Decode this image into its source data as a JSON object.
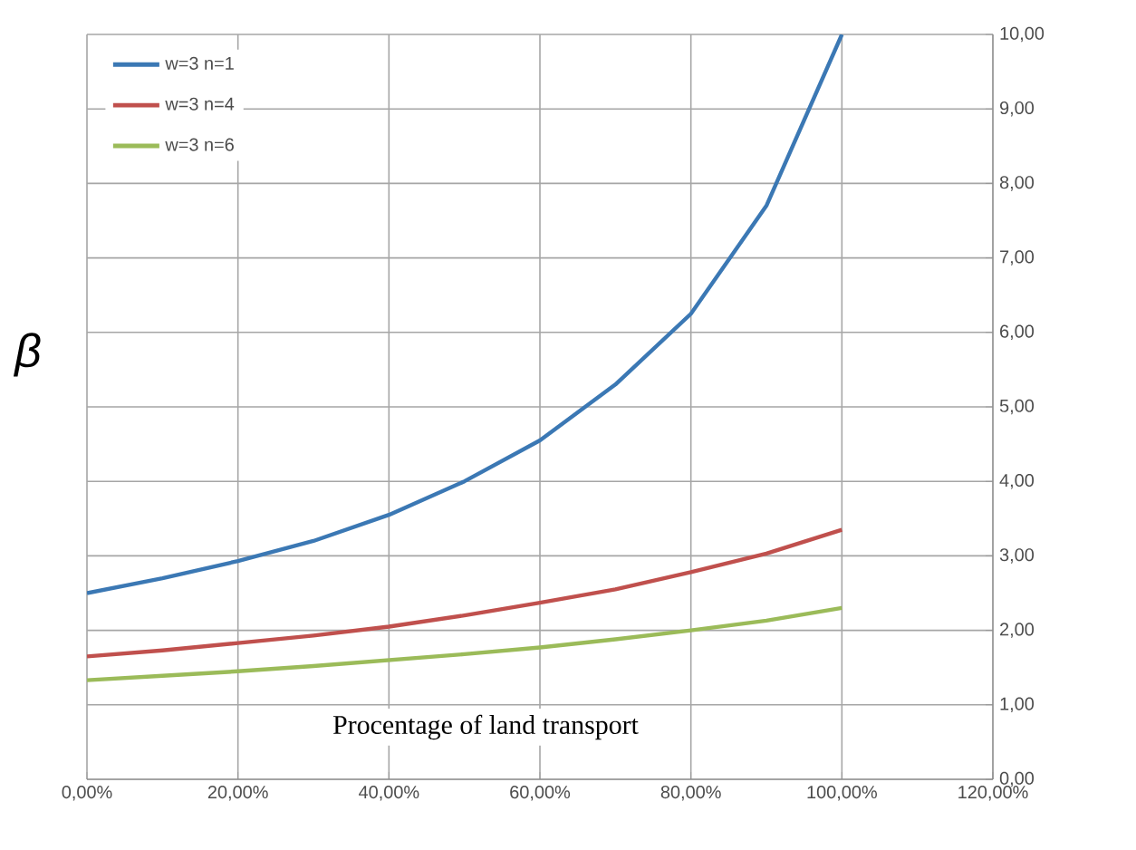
{
  "chart_data": {
    "type": "line",
    "xlabel": "Procentage of land transport",
    "ylabel": "β",
    "x": [
      0,
      10,
      20,
      30,
      40,
      50,
      60,
      70,
      80,
      90,
      100
    ],
    "series": [
      {
        "name": "w=3 n=1",
        "color": "#3b78b4",
        "values": [
          2.5,
          2.7,
          2.93,
          3.2,
          3.55,
          4.0,
          4.55,
          5.3,
          6.25,
          7.7,
          10.0
        ]
      },
      {
        "name": "w=3 n=4",
        "color": "#c0504d",
        "values": [
          1.65,
          1.73,
          1.83,
          1.93,
          2.05,
          2.2,
          2.37,
          2.55,
          2.78,
          3.03,
          3.35
        ]
      },
      {
        "name": "w=3 n=6",
        "color": "#9bbb59",
        "values": [
          1.33,
          1.39,
          1.45,
          1.52,
          1.6,
          1.68,
          1.77,
          1.88,
          2.0,
          2.13,
          2.3
        ]
      }
    ],
    "xlim": [
      0,
      120
    ],
    "xticks": [
      {
        "value": 0,
        "label": "0,00%"
      },
      {
        "value": 20,
        "label": "20,00%"
      },
      {
        "value": 40,
        "label": "40,00%"
      },
      {
        "value": 60,
        "label": "60,00%"
      },
      {
        "value": 80,
        "label": "80,00%"
      },
      {
        "value": 100,
        "label": "100,00%"
      },
      {
        "value": 120,
        "label": "120,00%"
      }
    ],
    "ylim": [
      0,
      10
    ],
    "yticks": [
      {
        "value": 0,
        "label": "0,00"
      },
      {
        "value": 1,
        "label": "1,00"
      },
      {
        "value": 2,
        "label": "2,00"
      },
      {
        "value": 3,
        "label": "3,00"
      },
      {
        "value": 4,
        "label": "4,00"
      },
      {
        "value": 5,
        "label": "5,00"
      },
      {
        "value": 6,
        "label": "6,00"
      },
      {
        "value": 7,
        "label": "7,00"
      },
      {
        "value": 8,
        "label": "8,00"
      },
      {
        "value": 9,
        "label": "9,00"
      },
      {
        "value": 10,
        "label": "10,00"
      }
    ],
    "grid": true,
    "legend": "top left",
    "marker": "none",
    "line_style": "solid"
  }
}
